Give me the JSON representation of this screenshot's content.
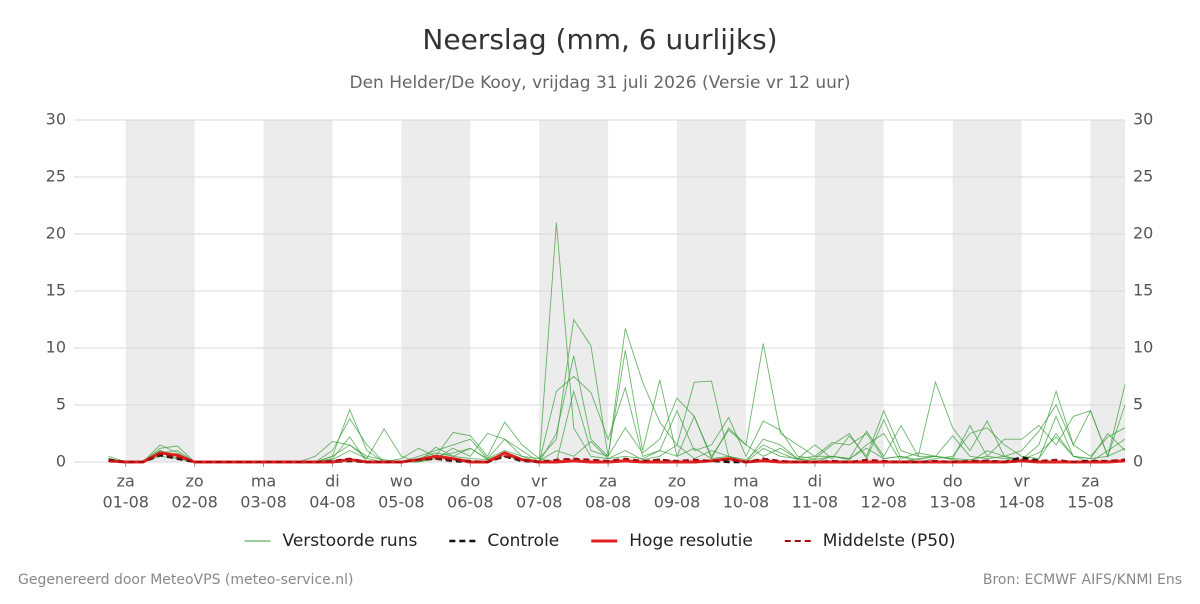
{
  "chart_data": {
    "type": "line",
    "title": "Neerslag (mm, 6 uurlijks)",
    "subtitle": "Den Helder/De Kooy, vrijdag 31 juli 2026 (Versie vr 12 uur)",
    "footer_left": "Gegenereerd door MeteoVPS (meteo-service.nl)",
    "footer_right": "Bron: ECMWF AIFS/KNMI Ens",
    "xlim": [
      -2,
      59
    ],
    "x": [
      0,
      1,
      2,
      3,
      4,
      5,
      6,
      7,
      8,
      9,
      10,
      11,
      12,
      13,
      14,
      15,
      16,
      17,
      18,
      19,
      20,
      21,
      22,
      23,
      24,
      25,
      26,
      27,
      28,
      29,
      30,
      31,
      32,
      33,
      34,
      35,
      36,
      37,
      38,
      39,
      40,
      41,
      42,
      43,
      44,
      45,
      46,
      47,
      48,
      49,
      50,
      51,
      52,
      53,
      54,
      55,
      56,
      57,
      58,
      59
    ],
    "xticks": [
      {
        "value": 1,
        "label": "za",
        "date": "01-08"
      },
      {
        "value": 5,
        "label": "zo",
        "date": "02-08"
      },
      {
        "value": 9,
        "label": "ma",
        "date": "03-08"
      },
      {
        "value": 13,
        "label": "di",
        "date": "04-08"
      },
      {
        "value": 17,
        "label": "wo",
        "date": "05-08"
      },
      {
        "value": 21,
        "label": "do",
        "date": "06-08"
      },
      {
        "value": 25,
        "label": "vr",
        "date": "07-08"
      },
      {
        "value": 29,
        "label": "za",
        "date": "08-08"
      },
      {
        "value": 33,
        "label": "zo",
        "date": "09-08"
      },
      {
        "value": 37,
        "label": "ma",
        "date": "10-08"
      },
      {
        "value": 41,
        "label": "di",
        "date": "11-08"
      },
      {
        "value": 45,
        "label": "wo",
        "date": "12-08"
      },
      {
        "value": 49,
        "label": "do",
        "date": "13-08"
      },
      {
        "value": 53,
        "label": "vr",
        "date": "14-08"
      },
      {
        "value": 57,
        "label": "za",
        "date": "15-08"
      }
    ],
    "ylim": [
      0,
      30
    ],
    "yticks": [
      0,
      5,
      10,
      15,
      20,
      25,
      30
    ],
    "grid": true,
    "ensemble": {
      "name": "Verstoorde runs",
      "color": "#3a9e3a",
      "runs": [
        [
          0.3,
          0,
          0,
          1.5,
          0.8,
          0,
          0,
          0,
          0,
          0,
          0,
          0,
          0,
          0.5,
          4.6,
          1,
          0,
          0,
          0,
          0.5,
          0.8,
          1.2,
          0.3,
          2,
          1,
          0,
          21,
          3,
          0.5,
          0.3,
          1,
          0.2,
          0.5,
          1.5,
          0.3,
          1,
          0.5,
          0,
          2,
          1.5,
          0.3,
          0,
          0.5,
          0.2,
          1.5,
          2.5,
          0,
          0.3,
          0.5,
          0.2,
          0,
          1,
          0.5,
          0,
          0.3,
          2.5,
          0.5,
          0,
          1,
          2
        ],
        [
          0.5,
          0,
          0,
          1.2,
          1.4,
          0,
          0,
          0,
          0,
          0,
          0,
          0,
          0.5,
          1.8,
          1.5,
          0.3,
          2.9,
          0.5,
          0,
          0.3,
          1.2,
          0.5,
          2.5,
          2,
          0.5,
          0.3,
          2,
          12.5,
          10.2,
          0.5,
          3,
          0.8,
          2,
          5.6,
          4,
          0.5,
          2.8,
          1.5,
          0.5,
          1.2,
          0.3,
          0.5,
          1.7,
          1.5,
          2.5,
          0.3,
          0.5,
          0,
          0.3,
          0.5,
          2.5,
          3,
          1.5,
          0.5,
          0.3,
          4,
          0.5,
          0.3,
          2.5,
          1
        ],
        [
          0.3,
          0,
          0,
          1,
          0.5,
          0,
          0,
          0,
          0,
          0,
          0,
          0,
          0,
          0.3,
          2.2,
          0,
          0,
          0.3,
          1.2,
          0.5,
          2.6,
          2.3,
          0.5,
          3.5,
          1.5,
          0.3,
          0,
          6.2,
          1,
          0.5,
          11.7,
          7,
          3.5,
          1.5,
          7,
          7.1,
          0.5,
          0,
          1.2,
          0.5,
          0.3,
          1.5,
          0.3,
          2.3,
          0.5,
          4.5,
          1,
          0.5,
          7,
          3,
          1,
          3.6,
          0.5,
          1,
          2.7,
          5,
          1.5,
          4.5,
          0.5,
          6.8
        ],
        [
          0,
          0,
          0,
          0.8,
          1,
          0,
          0,
          0,
          0,
          0,
          0,
          0,
          0,
          1,
          3.8,
          1.5,
          0,
          0,
          0.5,
          1,
          1.5,
          2,
          0.3,
          1,
          0.5,
          0,
          2.5,
          9.3,
          2,
          0.5,
          9.8,
          1,
          7.2,
          0.5,
          4,
          0.3,
          3,
          1.5,
          10.4,
          2.5,
          1.5,
          0.5,
          0.5,
          0.3,
          2.7,
          0.5,
          3.2,
          0.5,
          0.5,
          0.3,
          3.2,
          0.5,
          2,
          2,
          3.2,
          1.5,
          4,
          4.5,
          0.5,
          5
        ],
        [
          0.2,
          0,
          0,
          1,
          0.3,
          0,
          0,
          0,
          0,
          0,
          0,
          0,
          0,
          0.2,
          1,
          0.3,
          0,
          0,
          0,
          1.3,
          0.5,
          1.2,
          0.2,
          0.5,
          0.2,
          0,
          6.2,
          7.5,
          6.1,
          2,
          6.5,
          0.5,
          1,
          4.5,
          1,
          1.5,
          3.9,
          0.5,
          3.6,
          2.8,
          0.5,
          0.3,
          1.5,
          2.5,
          0.3,
          3.7,
          0.3,
          0.8,
          0.5,
          2.3,
          0.5,
          0.3,
          0.5,
          0.2,
          1.5,
          6.2,
          1.5,
          0.5,
          2.2,
          3
        ],
        [
          0.1,
          0,
          0,
          0.5,
          0.3,
          0,
          0,
          0,
          0,
          0,
          0,
          0,
          0,
          0.5,
          1.5,
          0.5,
          0.2,
          0,
          0.3,
          0.8,
          0.5,
          0.3,
          0.2,
          0.8,
          0.3,
          0.1,
          1,
          0.5,
          1.8,
          0.3,
          0.5,
          0.3,
          1,
          0.5,
          1.2,
          0.3,
          0.5,
          0.2,
          1.5,
          0.8,
          0.2,
          0.2,
          0.5,
          0.3,
          1.2,
          0.3,
          0.5,
          0.2,
          0.5,
          0.3,
          0.2,
          0.5,
          0.3,
          0.2,
          0.8,
          2.2,
          0.5,
          0.3,
          0.5,
          1.2
        ]
      ]
    },
    "series": [
      {
        "name": "Controle",
        "color": "#111111",
        "dash": true,
        "width": 2.5,
        "values": [
          0.2,
          0,
          0,
          0.6,
          0.3,
          0,
          0,
          0,
          0,
          0,
          0,
          0,
          0,
          0,
          0.1,
          0,
          0,
          0,
          0.2,
          0.3,
          0.1,
          0,
          0,
          0.5,
          0.1,
          0,
          0,
          0.2,
          0,
          0,
          0.1,
          0,
          0.2,
          0,
          0,
          0.1,
          0,
          0,
          0.2,
          0,
          0,
          0,
          0,
          0,
          0,
          0,
          0,
          0,
          0,
          0,
          0,
          0.1,
          0,
          0.4,
          0.1,
          0,
          0,
          0.1,
          0,
          0.2
        ]
      },
      {
        "name": "Hoge resolutie",
        "color": "#e02020",
        "dash": false,
        "width": 3,
        "values": [
          0.1,
          0,
          0,
          0.8,
          0.6,
          0,
          0,
          0,
          0,
          0,
          0,
          0,
          0,
          0,
          0.2,
          0,
          0,
          0,
          0.2,
          0.5,
          0.3,
          0,
          0,
          0.8,
          0.2,
          0,
          0,
          0.1,
          0,
          0,
          0.1,
          0,
          0,
          0,
          0,
          0.1,
          0.3,
          0,
          0.1,
          0,
          0,
          0,
          0,
          0,
          0,
          0,
          0,
          0,
          0,
          0,
          0,
          0,
          0,
          0.1,
          0,
          0,
          0,
          0,
          0,
          0.1
        ]
      },
      {
        "name": "Middelste (P50)",
        "color": "#a01010",
        "dash": true,
        "width": 2,
        "values": [
          0.1,
          0,
          0,
          0.7,
          0.4,
          0,
          0,
          0,
          0,
          0,
          0,
          0,
          0,
          0.1,
          0.3,
          0,
          0,
          0,
          0.2,
          0.3,
          0.2,
          0.1,
          0,
          0.5,
          0.2,
          0,
          0.2,
          0.3,
          0.2,
          0.1,
          0.3,
          0.1,
          0.2,
          0.1,
          0.2,
          0.1,
          0.2,
          0,
          0.3,
          0.1,
          0,
          0,
          0.1,
          0,
          0.2,
          0.1,
          0,
          0,
          0.1,
          0,
          0.1,
          0.1,
          0,
          0.2,
          0.1,
          0.2,
          0,
          0.1,
          0.1,
          0.2
        ]
      }
    ]
  }
}
